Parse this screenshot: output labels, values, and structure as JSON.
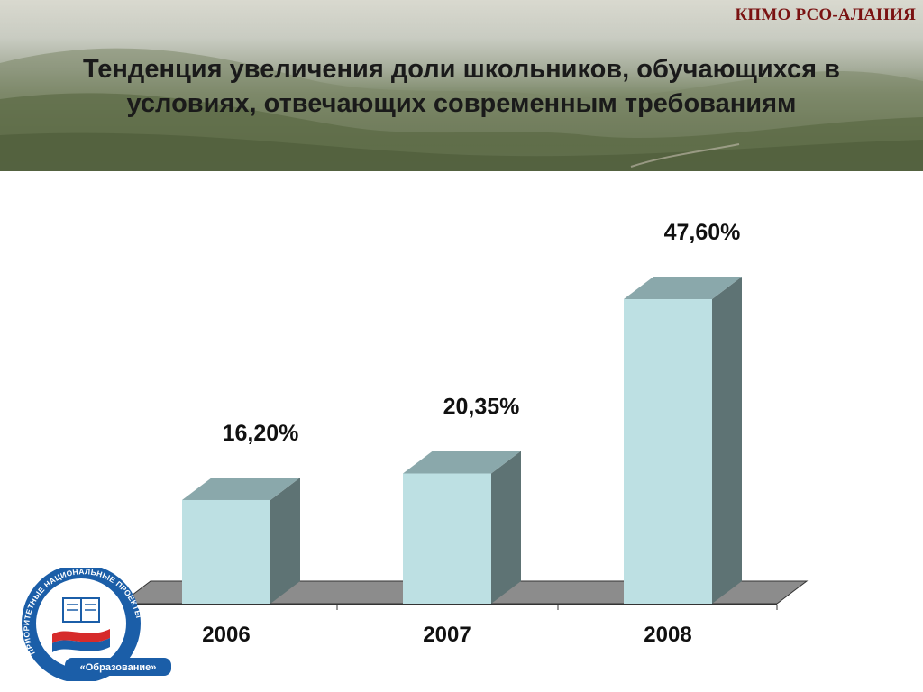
{
  "header": {
    "org_label": "КПМО РСО-АЛАНИЯ",
    "title_lines": [
      "Тенденция увеличения доли школьников, обучающихся в",
      "условиях, отвечающих современным требованиям"
    ]
  },
  "logo": {
    "ring_text": "ПРИОРИТЕТНЫЕ НАЦИОНАЛЬНЫЕ ПРОЕКТЫ",
    "bottom_text": "«Образование»",
    "colors": {
      "ring": "#1b5ea8",
      "flag_red": "#d62b2b",
      "flag_blue": "#1b5ea8"
    }
  },
  "chart_data": {
    "type": "bar",
    "style": "3d-column",
    "categories": [
      "2006",
      "2007",
      "2008"
    ],
    "values": [
      16.2,
      20.35,
      47.6
    ],
    "data_labels": [
      "16,20%",
      "20,35%",
      "47,60%"
    ],
    "ylim": [
      0,
      50
    ],
    "grid": false,
    "legend": "none",
    "colors": {
      "front": "#bde0e3",
      "top": "#8aa8ab",
      "side": "#5e7374",
      "floor": "#8c8c8c"
    }
  }
}
